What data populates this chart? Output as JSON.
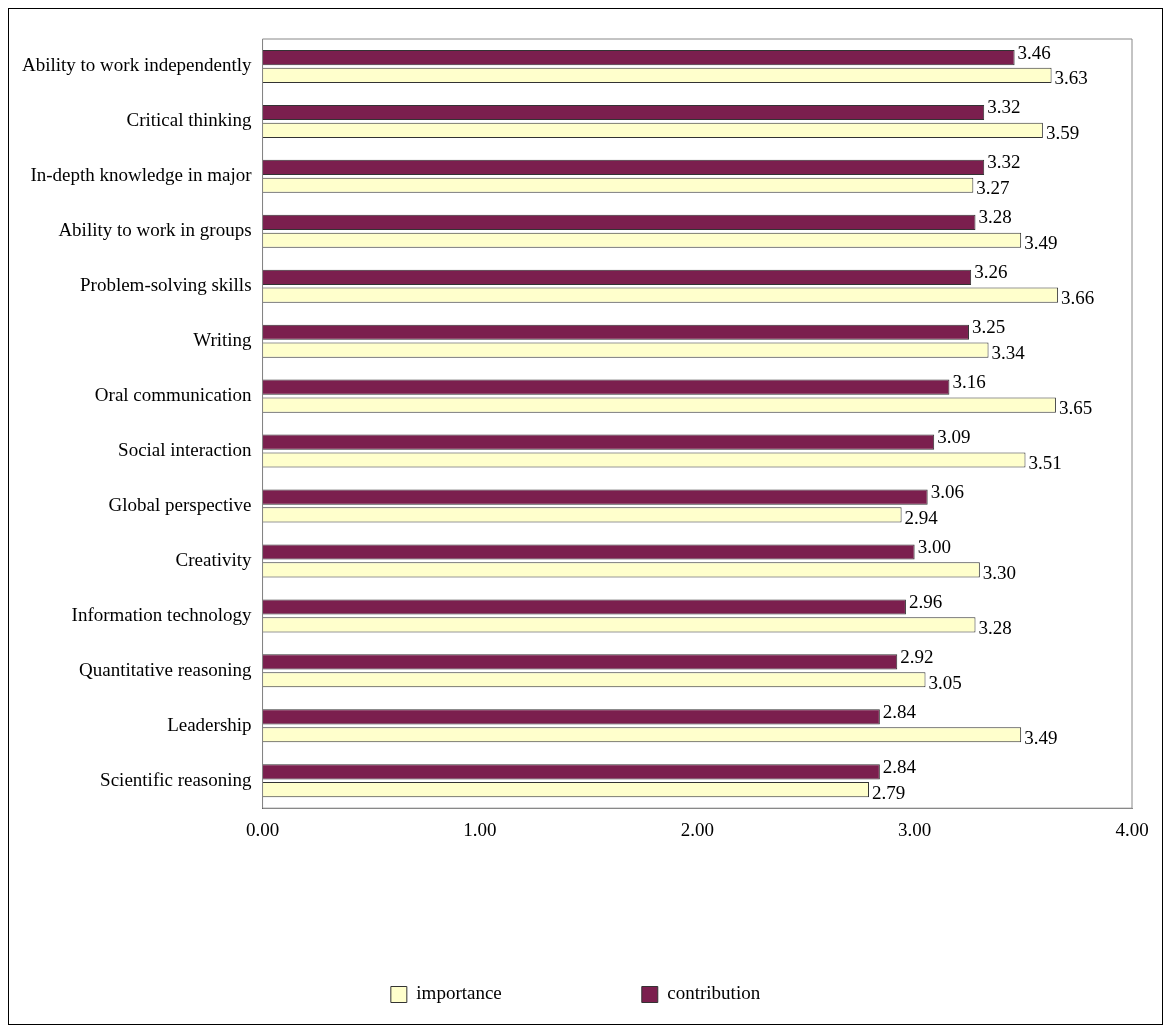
{
  "chart_data": {
    "type": "bar",
    "orientation": "horizontal",
    "categories": [
      "Ability to work independently",
      "Critical thinking",
      "In-depth knowledge in major",
      "Ability to work in groups",
      "Problem-solving skills",
      "Writing",
      "Oral communication",
      "Social interaction",
      "Global perspective",
      "Creativity",
      "Information technology",
      "Quantitative reasoning",
      "Leadership",
      "Scientific reasoning"
    ],
    "series": [
      {
        "name": "contribution",
        "color": "#7b1f4e",
        "values": [
          3.46,
          3.32,
          3.32,
          3.28,
          3.26,
          3.25,
          3.16,
          3.09,
          3.06,
          3.0,
          2.96,
          2.92,
          2.84,
          2.84
        ],
        "value_labels": [
          "3.46",
          "3.32",
          "3.32",
          "3.28",
          "3.26",
          "3.25",
          "3.16",
          "3.09",
          "3.06",
          "3.00",
          "2.96",
          "2.92",
          "2.84",
          "2.84"
        ]
      },
      {
        "name": "importance",
        "color": "#ffffcc",
        "values": [
          3.63,
          3.59,
          3.27,
          3.49,
          3.66,
          3.34,
          3.65,
          3.51,
          2.94,
          3.3,
          3.28,
          3.05,
          3.49,
          2.79
        ],
        "value_labels": [
          "3.63",
          "3.59",
          "3.27",
          "3.49",
          "3.66",
          "3.34",
          "3.65",
          "3.51",
          "2.94",
          "3.30",
          "3.28",
          "3.05",
          "3.49",
          "2.79"
        ]
      }
    ],
    "xlim": [
      0,
      4
    ],
    "xticks": [
      {
        "value": 0,
        "label": "0.00"
      },
      {
        "value": 1,
        "label": "1.00"
      },
      {
        "value": 2,
        "label": "2.00"
      },
      {
        "value": 3,
        "label": "3.00"
      },
      {
        "value": 4,
        "label": "4.00"
      }
    ],
    "grid": false,
    "legend": "bottom"
  }
}
